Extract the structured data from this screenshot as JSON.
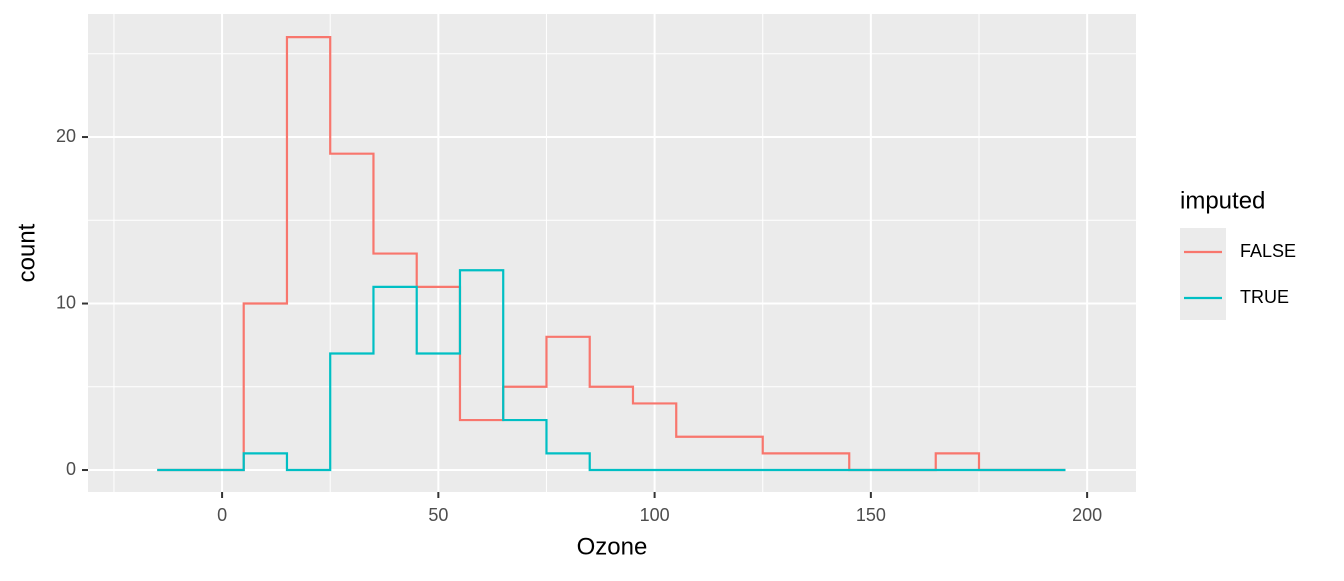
{
  "chart_data": {
    "type": "step",
    "x_label": "Ozone",
    "y_label": "count",
    "x": [
      -15,
      -5,
      5,
      15,
      25,
      35,
      45,
      55,
      65,
      75,
      85,
      95,
      105,
      115,
      125,
      135,
      145,
      155,
      165,
      175,
      185,
      195
    ],
    "series": [
      {
        "name": "FALSE",
        "color": "#F8766D",
        "values": [
          0,
          0,
          10,
          26,
          19,
          13,
          11,
          3,
          5,
          8,
          5,
          4,
          2,
          2,
          1,
          1,
          0,
          0,
          1,
          0,
          0,
          0
        ]
      },
      {
        "name": "TRUE",
        "color": "#00BFC4",
        "values": [
          0,
          0,
          1,
          0,
          7,
          11,
          7,
          12,
          3,
          1,
          0,
          0,
          0,
          0,
          0,
          0,
          0,
          0,
          0,
          0,
          0,
          0
        ]
      }
    ],
    "legend_title": "imputed",
    "legend": "right",
    "xlim": [
      -31,
      211.3
    ],
    "xticks": [
      0,
      50,
      100,
      150,
      200
    ],
    "ylim": [
      -1.32,
      27.39
    ],
    "yticks": [
      0,
      10,
      20
    ],
    "grid": true
  }
}
